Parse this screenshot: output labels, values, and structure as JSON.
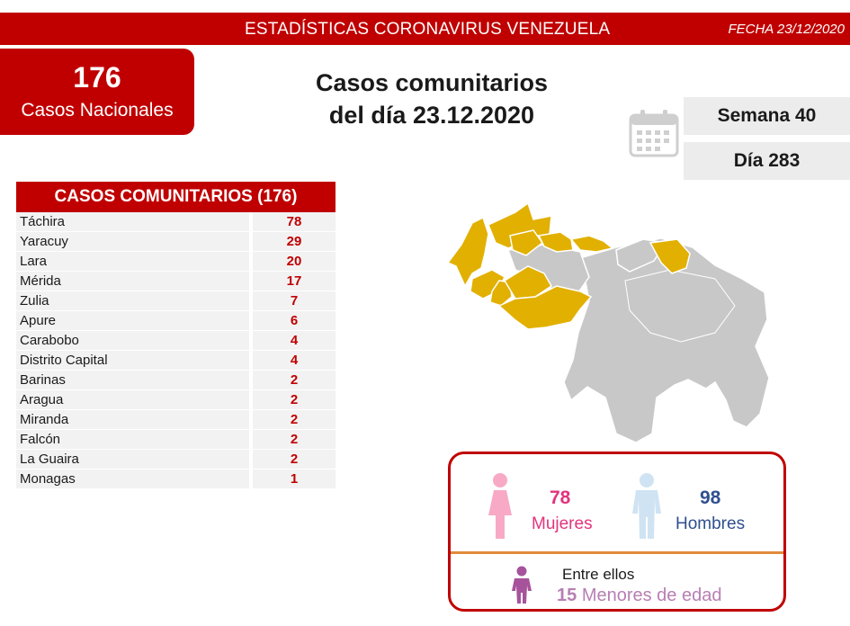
{
  "header": {
    "title": "ESTADÍSTICAS CORONAVIRUS VENEZUELA",
    "date": "FECHA 23/12/2020"
  },
  "national": {
    "count": "176",
    "label": "Casos Nacionales"
  },
  "main_title": {
    "line1": "Casos comunitarios",
    "line2": "del día 23.12.2020"
  },
  "calendar": {
    "icon": "calendar-icon",
    "week": "Semana 40",
    "day": "Día 283"
  },
  "table": {
    "header": "CASOS COMUNITARIOS (176)",
    "rows": [
      {
        "state": "Táchira",
        "cases": "78"
      },
      {
        "state": "Yaracuy",
        "cases": "29"
      },
      {
        "state": "Lara",
        "cases": "20"
      },
      {
        "state": "Mérida",
        "cases": "17"
      },
      {
        "state": "Zulia",
        "cases": "7"
      },
      {
        "state": "Apure",
        "cases": "6"
      },
      {
        "state": "Carabobo",
        "cases": "4"
      },
      {
        "state": "Distrito Capital",
        "cases": "4"
      },
      {
        "state": "Barinas",
        "cases": "2"
      },
      {
        "state": "Aragua",
        "cases": "2"
      },
      {
        "state": "Miranda",
        "cases": "2"
      },
      {
        "state": "Falcón",
        "cases": "2"
      },
      {
        "state": "La Guaira",
        "cases": "2"
      },
      {
        "state": "Monagas",
        "cases": "1"
      }
    ]
  },
  "map": {
    "highlight_color": "#e2b000",
    "base_color": "#c8c8c8"
  },
  "gender": {
    "female_count": "78",
    "female_label": "Mujeres",
    "male_count": "98",
    "male_label": "Hombres",
    "female_color": "#f8a9c6",
    "male_color": "#cfe3f3"
  },
  "minors": {
    "intro": "Entre ellos",
    "count": "15",
    "label": "Menores de edad"
  }
}
